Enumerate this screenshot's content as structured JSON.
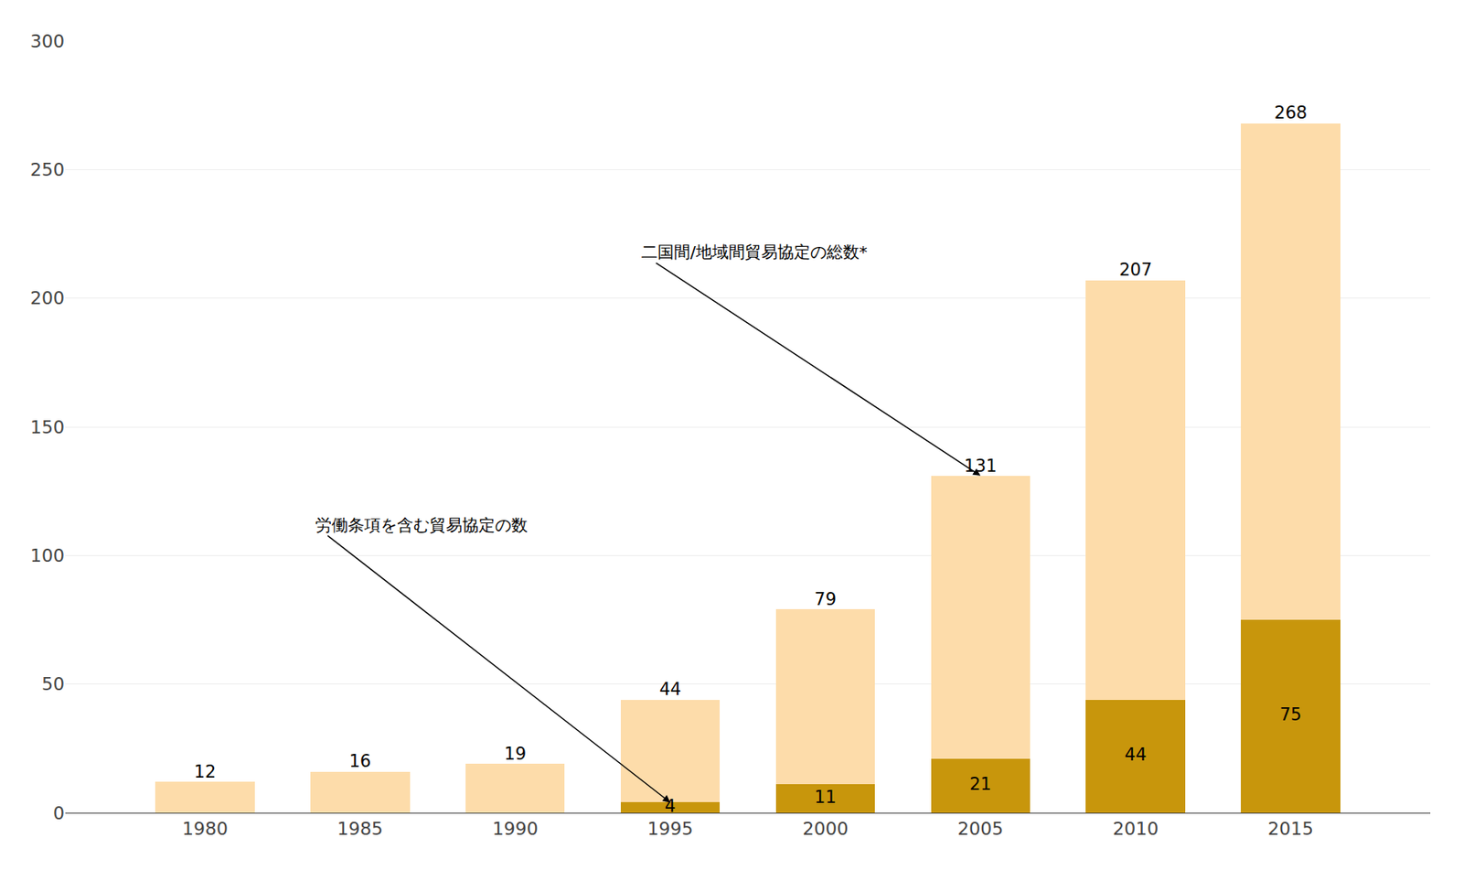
{
  "chart_data": {
    "type": "bar",
    "stacked": true,
    "x": [
      1980,
      1985,
      1990,
      1995,
      2000,
      2005,
      2010,
      2015
    ],
    "series": [
      {
        "color": "#C8960C",
        "values": [
          0,
          0,
          0,
          4,
          11,
          21,
          44,
          75
        ],
        "value_labels": [
          null,
          null,
          null,
          "4",
          "11",
          "21",
          "44",
          "75"
        ]
      },
      {
        "color": "#FDDCAA",
        "values": [
          12,
          16,
          19,
          40,
          68,
          110,
          163,
          193
        ]
      }
    ],
    "totals": [
      12,
      16,
      19,
      44,
      79,
      131,
      207,
      268
    ],
    "data_labels": true,
    "xlim": [
      1975.5,
      2019.5
    ],
    "xticks": [
      1980,
      1985,
      1990,
      1995,
      2000,
      2005,
      2010,
      2015
    ],
    "ylim": [
      0,
      300
    ],
    "yticks": [
      0,
      50,
      100,
      150,
      200,
      250,
      300
    ],
    "grid": true,
    "annotations": [
      {
        "text": "労働条項を含む貿易協定の数",
        "xy": [
          1995,
          4
        ],
        "xytext": [
          1983.5,
          112
        ]
      },
      {
        "text": "二国間/地域間貿易協定の総数*",
        "xy": [
          2005,
          131
        ],
        "xytext": [
          1994,
          218
        ]
      }
    ]
  }
}
